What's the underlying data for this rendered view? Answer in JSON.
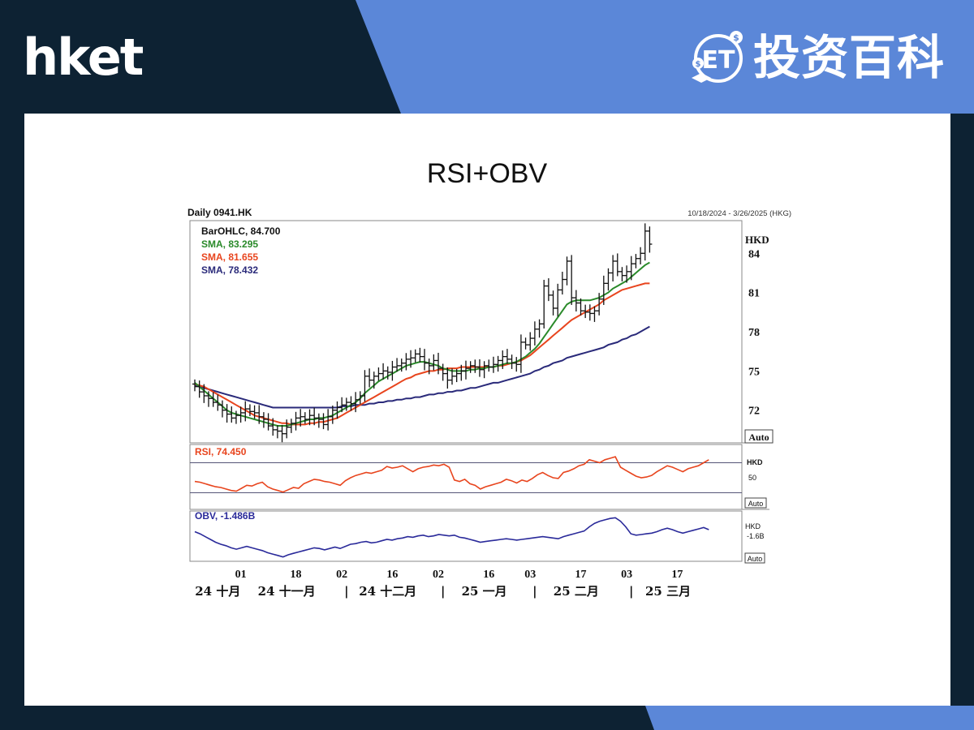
{
  "header": {
    "brand_left": "hket",
    "brand_right_badge": "ET",
    "brand_right_text": "投资百科"
  },
  "colors": {
    "navy": "#0d2233",
    "blue": "#5b87d8",
    "sma_short": "#2a8a2a",
    "sma_mid": "#e8451e",
    "sma_long": "#2a2a7a",
    "rsi": "#e8451e",
    "obv": "#2a2a9a"
  },
  "card": {
    "title": "RSI+OBV"
  },
  "chart_data": {
    "type": "line",
    "title": "Daily 0941.HK",
    "date_range": "10/18/2024 - 3/26/2025 (HKG)",
    "currency": "HKD",
    "scale_button": "Auto",
    "price_panel": {
      "legend": [
        {
          "label": "BarOHLC, 84.700"
        },
        {
          "label": "SMA, 83.295"
        },
        {
          "label": "SMA, 81.655"
        },
        {
          "label": "SMA, 78.432"
        }
      ],
      "y_ticks": [
        72,
        75,
        78,
        81,
        84
      ],
      "ylim": [
        69.5,
        86.5
      ],
      "ohlc_close": [
        73.8,
        73.4,
        73.1,
        72.9,
        72.6,
        72.4,
        72.0,
        71.7,
        71.4,
        71.6,
        71.8,
        72.1,
        71.9,
        71.8,
        71.5,
        71.3,
        70.8,
        70.5,
        70.4,
        70.2,
        70.7,
        71.0,
        71.4,
        71.5,
        71.3,
        71.6,
        71.4,
        71.3,
        70.9,
        71.5,
        72.0,
        72.2,
        72.4,
        72.6,
        72.5,
        72.8,
        73.1,
        74.6,
        74.3,
        74.6,
        74.8,
        75.0,
        74.9,
        75.3,
        75.4,
        75.6,
        75.9,
        76.0,
        76.3,
        76.1,
        75.6,
        75.4,
        75.8,
        75.2,
        74.8,
        74.3,
        74.6,
        74.8,
        75.0,
        75.2,
        75.4,
        75.3,
        75.1,
        75.4,
        75.3,
        75.5,
        75.8,
        76.1,
        75.9,
        75.6,
        75.5,
        77.2,
        77.0,
        77.5,
        78.2,
        78.6,
        81.5,
        80.8,
        79.8,
        81.2,
        82.0,
        83.4,
        80.6,
        80.2,
        79.6,
        79.5,
        79.4,
        79.6,
        80.5,
        81.7,
        82.5,
        83.4,
        82.6,
        82.3,
        82.6,
        83.2,
        83.6,
        84.0,
        85.7,
        84.7
      ],
      "sma_green": [
        74.1,
        73.8,
        73.5,
        73.2,
        72.9,
        72.6,
        72.3,
        72.0,
        71.8,
        71.7,
        71.6,
        71.5,
        71.4,
        71.3,
        71.2,
        71.1,
        71.0,
        70.9,
        70.8,
        70.8,
        70.8,
        70.9,
        71.0,
        71.1,
        71.2,
        71.3,
        71.3,
        71.4,
        71.4,
        71.5,
        71.6,
        71.8,
        72.0,
        72.2,
        72.4,
        72.6,
        72.9,
        73.3,
        73.6,
        73.9,
        74.2,
        74.4,
        74.6,
        74.8,
        75.0,
        75.2,
        75.4,
        75.5,
        75.6,
        75.7,
        75.7,
        75.6,
        75.5,
        75.4,
        75.2,
        75.1,
        75.0,
        75.0,
        75.0,
        75.0,
        75.1,
        75.1,
        75.2,
        75.2,
        75.3,
        75.3,
        75.4,
        75.5,
        75.6,
        75.6,
        75.7,
        75.9,
        76.1,
        76.4,
        76.7,
        77.1,
        77.6,
        78.1,
        78.6,
        79.1,
        79.6,
        80.1,
        80.3,
        80.4,
        80.4,
        80.4,
        80.4,
        80.5,
        80.6,
        80.8,
        81.0,
        81.3,
        81.5,
        81.7,
        81.9,
        82.2,
        82.5,
        82.8,
        83.1,
        83.3
      ],
      "sma_red": [
        74.0,
        73.9,
        73.8,
        73.6,
        73.4,
        73.2,
        73.0,
        72.8,
        72.6,
        72.4,
        72.2,
        72.0,
        71.8,
        71.6,
        71.5,
        71.4,
        71.3,
        71.2,
        71.1,
        71.0,
        71.0,
        70.9,
        70.9,
        70.9,
        70.9,
        71.0,
        71.0,
        71.1,
        71.1,
        71.2,
        71.3,
        71.4,
        71.6,
        71.8,
        72.0,
        72.2,
        72.4,
        72.6,
        72.8,
        73.0,
        73.2,
        73.4,
        73.6,
        73.8,
        74.0,
        74.2,
        74.4,
        74.5,
        74.7,
        74.8,
        74.9,
        75.0,
        75.0,
        75.1,
        75.1,
        75.2,
        75.2,
        75.2,
        75.3,
        75.3,
        75.3,
        75.3,
        75.3,
        75.3,
        75.3,
        75.3,
        75.4,
        75.4,
        75.5,
        75.6,
        75.7,
        75.8,
        76.0,
        76.2,
        76.5,
        76.8,
        77.1,
        77.4,
        77.7,
        78.0,
        78.3,
        78.6,
        78.9,
        79.1,
        79.3,
        79.5,
        79.7,
        79.9,
        80.1,
        80.4,
        80.6,
        80.8,
        81.0,
        81.2,
        81.3,
        81.4,
        81.5,
        81.6,
        81.7,
        81.7
      ],
      "sma_navy": [
        73.9,
        73.8,
        73.7,
        73.6,
        73.5,
        73.4,
        73.3,
        73.2,
        73.1,
        73.0,
        72.9,
        72.8,
        72.7,
        72.6,
        72.5,
        72.4,
        72.3,
        72.2,
        72.2,
        72.2,
        72.2,
        72.2,
        72.2,
        72.2,
        72.2,
        72.2,
        72.2,
        72.2,
        72.2,
        72.2,
        72.2,
        72.2,
        72.3,
        72.3,
        72.3,
        72.4,
        72.4,
        72.4,
        72.5,
        72.5,
        72.6,
        72.6,
        72.7,
        72.7,
        72.8,
        72.8,
        72.9,
        72.9,
        73.0,
        73.0,
        73.1,
        73.2,
        73.2,
        73.3,
        73.3,
        73.4,
        73.4,
        73.5,
        73.5,
        73.6,
        73.7,
        73.7,
        73.8,
        73.9,
        74.0,
        74.1,
        74.1,
        74.2,
        74.3,
        74.4,
        74.5,
        74.6,
        74.7,
        74.8,
        75.0,
        75.1,
        75.3,
        75.4,
        75.6,
        75.7,
        75.8,
        76.0,
        76.1,
        76.2,
        76.3,
        76.4,
        76.5,
        76.6,
        76.7,
        76.8,
        77.0,
        77.1,
        77.2,
        77.4,
        77.5,
        77.7,
        77.8,
        78.0,
        78.2,
        78.4
      ]
    },
    "rsi_panel": {
      "legend": "RSI, 74.450",
      "unit_label": "HKD",
      "level_label": "50",
      "values": [
        45,
        44,
        42,
        40,
        38,
        37,
        35,
        33,
        32,
        36,
        40,
        39,
        42,
        44,
        38,
        35,
        33,
        31,
        34,
        37,
        36,
        42,
        45,
        48,
        47,
        45,
        44,
        42,
        40,
        46,
        50,
        53,
        55,
        57,
        56,
        58,
        60,
        65,
        63,
        64,
        66,
        62,
        58,
        62,
        64,
        65,
        67,
        66,
        68,
        64,
        47,
        45,
        48,
        42,
        40,
        35,
        38,
        40,
        42,
        44,
        48,
        46,
        43,
        47,
        45,
        49,
        54,
        57,
        53,
        50,
        49,
        57,
        59,
        62,
        66,
        68,
        74,
        72,
        70,
        74,
        76,
        78,
        64,
        60,
        56,
        52,
        50,
        51,
        53,
        58,
        62,
        66,
        64,
        61,
        58,
        62,
        64,
        66,
        70,
        74
      ]
    },
    "obv_panel": {
      "legend": "OBV, -1.486B",
      "unit_label": "HKD",
      "level_label": "-1.6B",
      "values": [
        -1.55,
        -1.58,
        -1.62,
        -1.66,
        -1.7,
        -1.73,
        -1.75,
        -1.78,
        -1.8,
        -1.78,
        -1.76,
        -1.78,
        -1.8,
        -1.82,
        -1.85,
        -1.87,
        -1.89,
        -1.91,
        -1.88,
        -1.86,
        -1.84,
        -1.82,
        -1.8,
        -1.78,
        -1.79,
        -1.81,
        -1.79,
        -1.77,
        -1.79,
        -1.76,
        -1.73,
        -1.72,
        -1.7,
        -1.69,
        -1.71,
        -1.7,
        -1.68,
        -1.66,
        -1.67,
        -1.65,
        -1.64,
        -1.62,
        -1.63,
        -1.61,
        -1.6,
        -1.62,
        -1.61,
        -1.59,
        -1.6,
        -1.61,
        -1.6,
        -1.63,
        -1.64,
        -1.66,
        -1.68,
        -1.7,
        -1.69,
        -1.68,
        -1.67,
        -1.66,
        -1.65,
        -1.66,
        -1.67,
        -1.66,
        -1.65,
        -1.64,
        -1.63,
        -1.62,
        -1.63,
        -1.64,
        -1.65,
        -1.62,
        -1.6,
        -1.58,
        -1.56,
        -1.54,
        -1.48,
        -1.43,
        -1.4,
        -1.38,
        -1.36,
        -1.35,
        -1.4,
        -1.48,
        -1.58,
        -1.6,
        -1.59,
        -1.58,
        -1.57,
        -1.55,
        -1.52,
        -1.5,
        -1.52,
        -1.55,
        -1.57,
        -1.55,
        -1.53,
        -1.51,
        -1.49,
        -1.52
      ]
    },
    "x_ticks": [
      {
        "label": "01",
        "index": 10
      },
      {
        "label": "18",
        "index": 22
      },
      {
        "label": "02",
        "index": 32
      },
      {
        "label": "16",
        "index": 43
      },
      {
        "label": "02",
        "index": 53
      },
      {
        "label": "16",
        "index": 64
      },
      {
        "label": "03",
        "index": 73
      },
      {
        "label": "17",
        "index": 84
      },
      {
        "label": "03",
        "index": 94
      },
      {
        "label": "17",
        "index": 105
      }
    ],
    "month_labels": [
      {
        "label": "24 十月",
        "index": 5
      },
      {
        "label": "24 十一月",
        "index": 20
      },
      {
        "label": "|",
        "index": 33
      },
      {
        "label": "24 十二月",
        "index": 42
      },
      {
        "label": "|",
        "index": 54
      },
      {
        "label": "25 一月",
        "index": 63
      },
      {
        "label": "|",
        "index": 74
      },
      {
        "label": "25 二月",
        "index": 83
      },
      {
        "label": "|",
        "index": 95
      },
      {
        "label": "25 三月",
        "index": 103
      }
    ]
  }
}
